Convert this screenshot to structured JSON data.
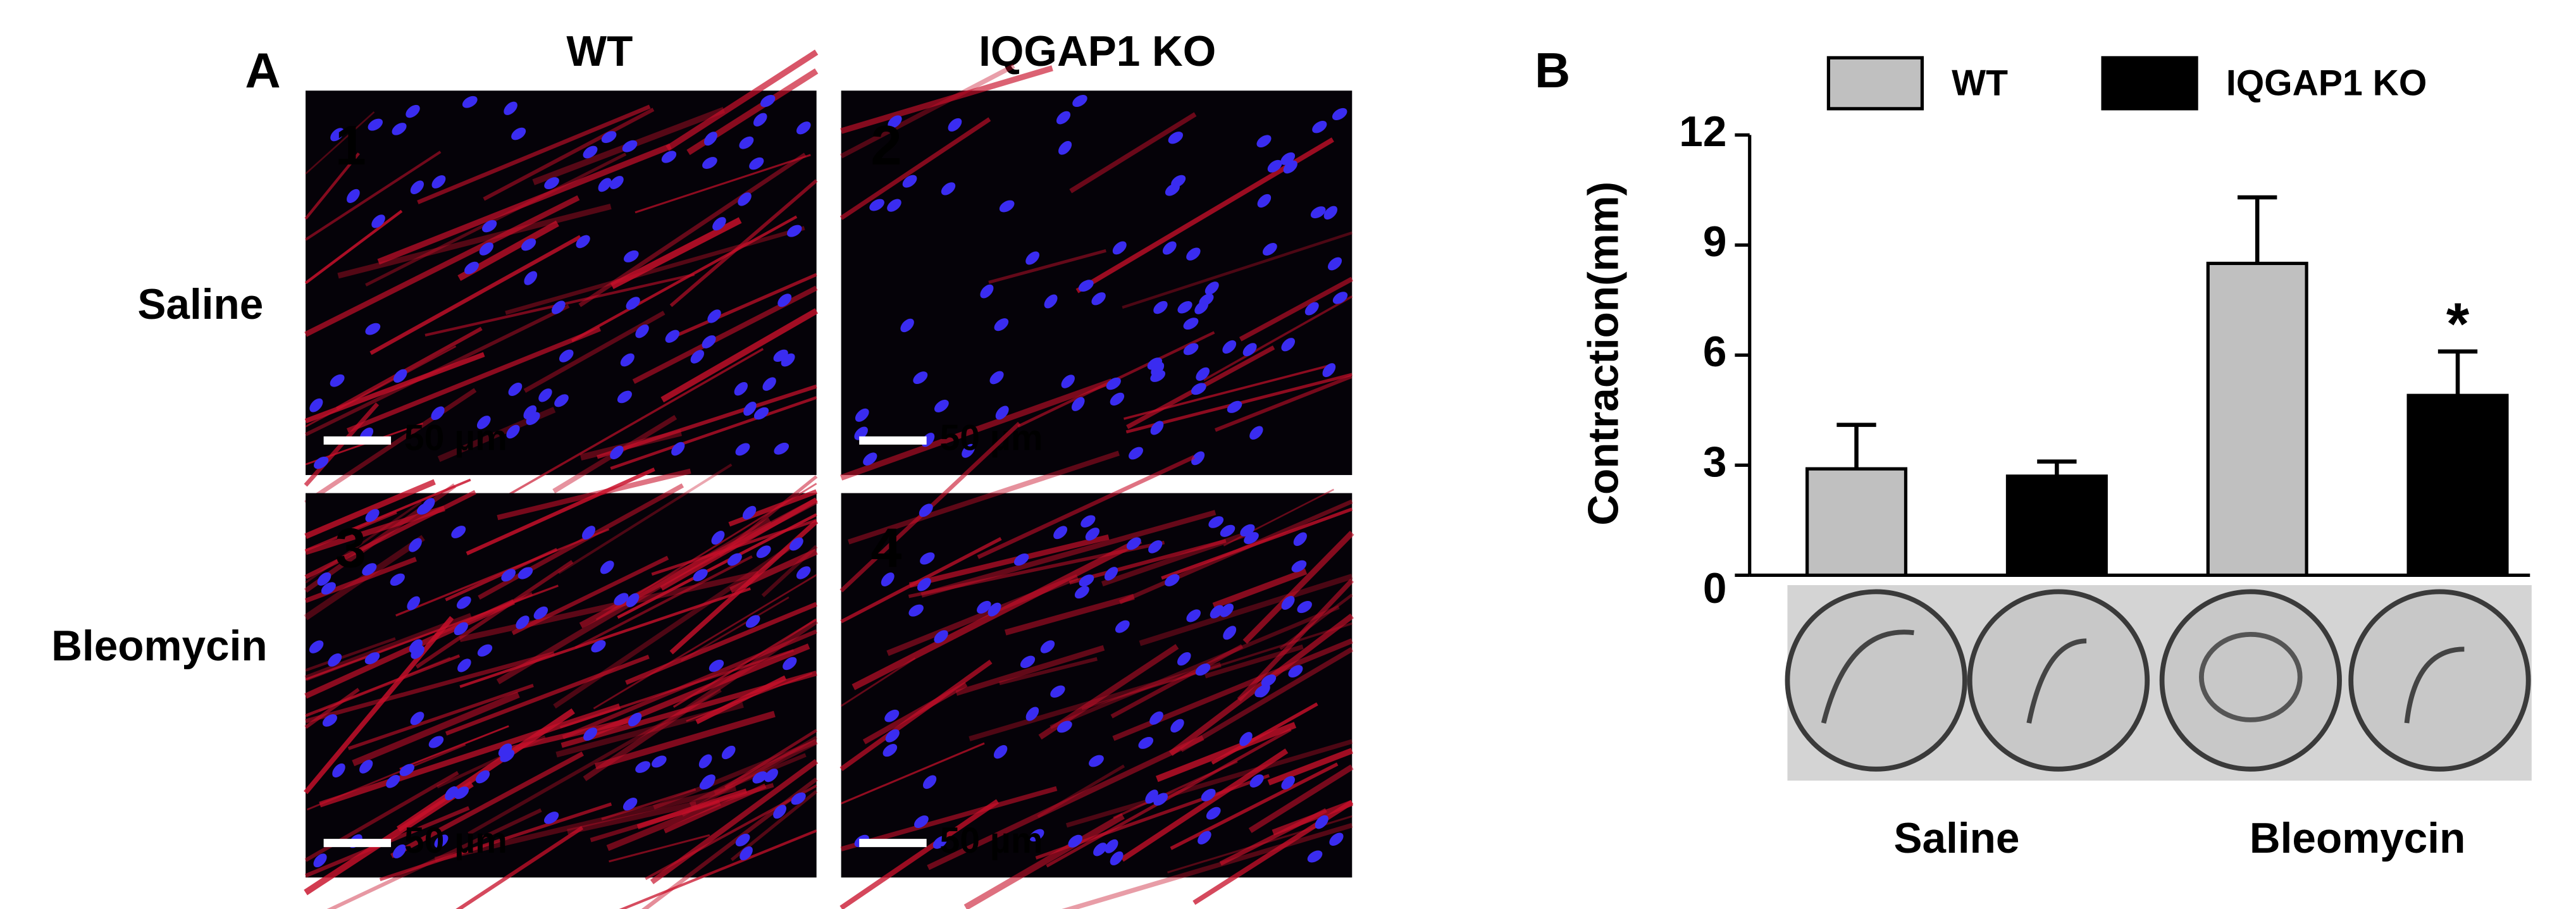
{
  "panel_a": {
    "label": "A",
    "columns": [
      "WT",
      "IQGAP1 KO"
    ],
    "rows": [
      "Saline",
      "Bleomycin"
    ],
    "images": [
      {
        "number": "1",
        "scale_bar": "50 µm"
      },
      {
        "number": "2",
        "scale_bar": "50 µm"
      },
      {
        "number": "3",
        "scale_bar": "50 µm"
      },
      {
        "number": "4",
        "scale_bar": "50 µm"
      }
    ]
  },
  "chart_data": {
    "type": "bar",
    "panel_label": "B",
    "y_label": "Contraction(mm)",
    "categories": [
      "Saline",
      "Bleomycin"
    ],
    "series": [
      {
        "name": "WT",
        "color": "#c0c0c0",
        "values": [
          2.9,
          8.5
        ],
        "errors": [
          1.2,
          1.8
        ]
      },
      {
        "name": "IQGAP1 KO",
        "color": "#000000",
        "values": [
          2.7,
          4.9
        ],
        "errors": [
          0.4,
          1.2
        ]
      }
    ],
    "annotations": [
      {
        "text": "*",
        "series": 1,
        "category": 1
      }
    ],
    "ylim": [
      0,
      12
    ],
    "yticks": [
      0,
      3,
      6,
      9,
      12
    ],
    "legend": "top",
    "grid": false
  }
}
